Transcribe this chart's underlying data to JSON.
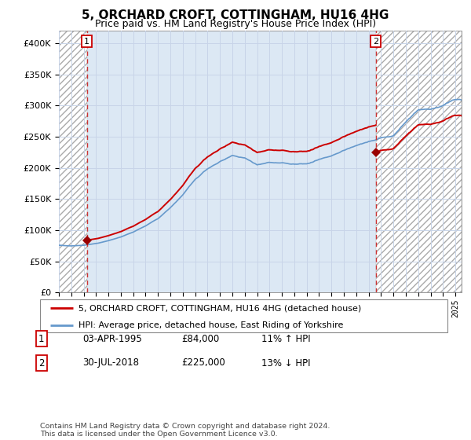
{
  "title": "5, ORCHARD CROFT, COTTINGHAM, HU16 4HG",
  "subtitle": "Price paid vs. HM Land Registry's House Price Index (HPI)",
  "legend_line1": "5, ORCHARD CROFT, COTTINGHAM, HU16 4HG (detached house)",
  "legend_line2": "HPI: Average price, detached house, East Riding of Yorkshire",
  "annotation1_date": "03-APR-1995",
  "annotation1_price": "£84,000",
  "annotation1_hpi": "11% ↑ HPI",
  "annotation2_date": "30-JUL-2018",
  "annotation2_price": "£225,000",
  "annotation2_hpi": "13% ↓ HPI",
  "footnote": "Contains HM Land Registry data © Crown copyright and database right 2024.\nThis data is licensed under the Open Government Licence v3.0.",
  "hpi_color": "#6699cc",
  "sale_color": "#cc0000",
  "marker_color": "#990000",
  "vline_color": "#cc3333",
  "grid_color": "#c8d4e8",
  "bg_color": "#dce8f4",
  "ylim": [
    0,
    420000
  ],
  "xlim_start": 1993.0,
  "xlim_end": 2025.5,
  "sale1_x": 1995.25,
  "sale1_y": 84000,
  "sale2_x": 2018.58,
  "sale2_y": 225000
}
